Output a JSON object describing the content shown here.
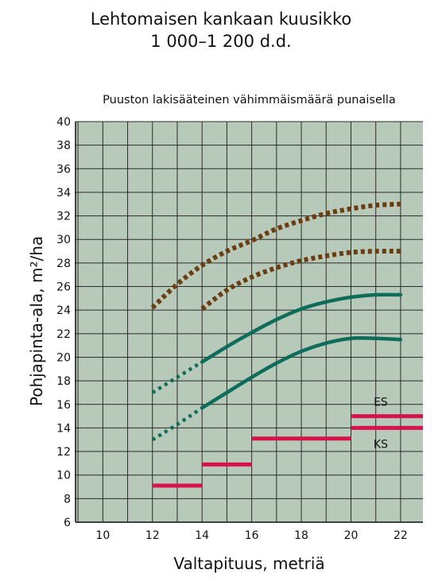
{
  "chart_data": {
    "type": "line",
    "title": "Lehtomaisen kankaan kuusikko",
    "title_line2": "1 000–1 200 d.d.",
    "subtitle": "Puuston lakisääteinen vähimmäismäärä punaisella",
    "xlabel": "Valtapituus, metriä",
    "ylabel": "Pohjapinta-ala, m²/ha",
    "xlim": [
      8.9,
      22.9
    ],
    "ylim": [
      6,
      40
    ],
    "x_ticks": [
      10,
      12,
      14,
      16,
      18,
      20,
      22
    ],
    "y_ticks": [
      6,
      8,
      10,
      12,
      14,
      16,
      18,
      20,
      22,
      24,
      26,
      28,
      30,
      32,
      34,
      36,
      38,
      40
    ],
    "grid": true,
    "colors": {
      "background": "#b7c9b9",
      "grid": "#2b2b2b",
      "brown": "#6b3d12",
      "green": "#0d6d5a",
      "red": "#d8124c"
    },
    "series": [
      {
        "role": "upper-brown-dotted",
        "color": "#6b3d12",
        "style": "dotted",
        "x": [
          12,
          13,
          14,
          15,
          16,
          17,
          18,
          19,
          20,
          21,
          22
        ],
        "y": [
          24.2,
          26.2,
          27.8,
          29,
          29.9,
          30.9,
          31.6,
          32.2,
          32.6,
          32.9,
          33
        ]
      },
      {
        "role": "lower-brown-dotted",
        "color": "#6b3d12",
        "style": "dotted",
        "x": [
          14,
          15,
          16,
          17,
          18,
          19,
          20,
          21,
          22
        ],
        "y": [
          24.1,
          25.7,
          26.8,
          27.6,
          28.2,
          28.6,
          28.9,
          29,
          29
        ]
      },
      {
        "role": "upper-green",
        "color": "#0d6d5a",
        "style": "solid",
        "dotted_until": 14,
        "x": [
          12,
          13,
          14,
          15,
          16,
          17,
          18,
          19,
          20,
          21,
          22
        ],
        "y": [
          17,
          18.3,
          19.6,
          20.9,
          22.1,
          23.2,
          24.1,
          24.7,
          25.1,
          25.3,
          25.3
        ]
      },
      {
        "role": "lower-green",
        "color": "#0d6d5a",
        "style": "solid",
        "dotted_until": 14,
        "x": [
          12,
          13,
          14,
          15,
          16,
          17,
          18,
          19,
          20,
          21,
          22
        ],
        "y": [
          13,
          14.3,
          15.7,
          17,
          18.3,
          19.5,
          20.5,
          21.2,
          21.6,
          21.6,
          21.5
        ]
      }
    ],
    "minimums": [
      {
        "x": [
          12,
          14
        ],
        "y": 9.1
      },
      {
        "x": [
          14,
          16
        ],
        "y": 10.9
      },
      {
        "x": [
          16,
          20
        ],
        "y": 13.1
      },
      {
        "x": [
          20,
          22.9
        ],
        "y": 15,
        "label": "ES"
      },
      {
        "x": [
          20,
          22.9
        ],
        "y": 14,
        "label": "KS"
      }
    ]
  }
}
